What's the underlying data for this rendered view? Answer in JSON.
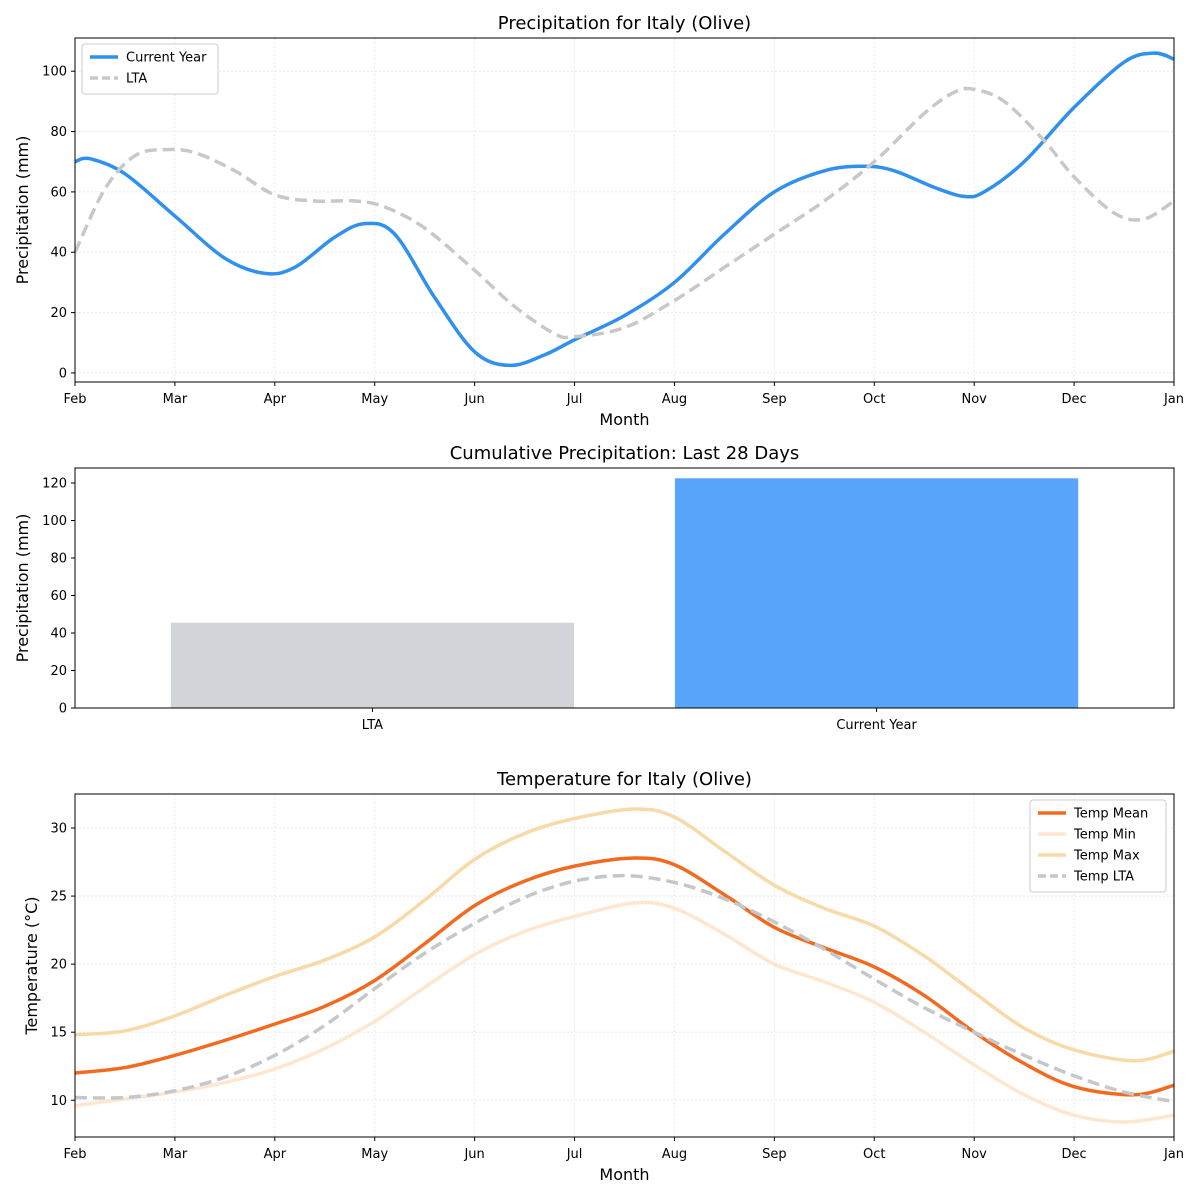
{
  "chart_data": [
    {
      "type": "line",
      "title": "Precipitation for Italy (Olive)",
      "xlabel": "Month",
      "ylabel": "Precipitation (mm)",
      "x_ticks": [
        "Feb",
        "Mar",
        "Apr",
        "May",
        "Jun",
        "Jul",
        "Aug",
        "Sep",
        "Oct",
        "Nov",
        "Dec",
        "Jan"
      ],
      "xlim": [
        0,
        11
      ],
      "ylim": [
        -3,
        111
      ],
      "y_ticks": [
        0,
        20,
        40,
        60,
        80,
        100
      ],
      "grid": true,
      "legend": "top-left",
      "series": [
        {
          "name": "Current Year",
          "color": "#3090ee",
          "style": "solid",
          "x": [
            0,
            0.15,
            0.5,
            1.0,
            1.5,
            1.9,
            2.2,
            2.6,
            2.9,
            3.2,
            3.6,
            4.0,
            4.35,
            4.7,
            5.0,
            5.5,
            6.0,
            6.5,
            7.0,
            7.5,
            7.9,
            8.2,
            8.6,
            8.9,
            9.1,
            9.5,
            10.0,
            10.5,
            10.8,
            11.0
          ],
          "y": [
            70,
            71,
            66,
            52,
            38,
            33,
            35,
            45,
            49.5,
            46,
            25,
            7,
            2.5,
            6,
            11,
            19,
            30,
            46,
            60,
            67,
            68.5,
            67,
            61.5,
            58.5,
            60,
            70,
            88,
            103,
            106,
            104
          ]
        },
        {
          "name": "LTA",
          "color": "#c8c8c8",
          "style": "dashed",
          "x": [
            0,
            0.3,
            0.6,
            0.9,
            1.2,
            1.6,
            2.0,
            2.4,
            2.8,
            3.1,
            3.5,
            4.0,
            4.4,
            4.8,
            5.0,
            5.5,
            6.0,
            6.5,
            7.0,
            7.5,
            8.0,
            8.5,
            8.8,
            9.0,
            9.3,
            9.7,
            10.0,
            10.4,
            10.7,
            11.0
          ],
          "y": [
            40,
            61,
            72,
            74,
            73,
            67,
            59,
            57,
            57,
            55,
            48,
            34,
            22,
            13,
            12,
            15,
            24,
            35,
            46,
            57,
            70,
            86,
            93,
            94,
            90,
            77,
            65,
            53,
            51,
            57
          ]
        }
      ]
    },
    {
      "type": "bar",
      "title": "Cumulative Precipitation: Last 28 Days",
      "xlabel": "",
      "ylabel": "Precipitation (mm)",
      "categories": [
        "LTA",
        "Current Year"
      ],
      "values": [
        45.5,
        122.5
      ],
      "colors": [
        "#d1d5d9",
        "#58a5fb"
      ],
      "ylim": [
        0,
        128
      ],
      "y_ticks": [
        0,
        20,
        40,
        60,
        80,
        100,
        120
      ]
    },
    {
      "type": "line",
      "title": "Temperature for Italy (Olive)",
      "xlabel": "Month",
      "ylabel": "Temperature (°C)",
      "x_ticks": [
        "Feb",
        "Mar",
        "Apr",
        "May",
        "Jun",
        "Jul",
        "Aug",
        "Sep",
        "Oct",
        "Nov",
        "Dec",
        "Jan"
      ],
      "xlim": [
        0,
        11
      ],
      "ylim": [
        7.3,
        32.5
      ],
      "y_ticks": [
        10,
        15,
        20,
        25,
        30
      ],
      "grid": true,
      "legend": "top-right",
      "series": [
        {
          "name": "Temp Mean",
          "color": "#f26a1f",
          "style": "solid",
          "x": [
            0,
            0.5,
            1.0,
            1.5,
            2.0,
            2.5,
            3.0,
            3.5,
            4.0,
            4.5,
            5.0,
            5.6,
            6.0,
            6.5,
            7.0,
            7.5,
            8.0,
            8.5,
            9.0,
            9.5,
            10.0,
            10.6,
            11.0
          ],
          "y": [
            12,
            12.4,
            13.3,
            14.4,
            15.6,
            16.9,
            18.8,
            21.5,
            24.3,
            26.1,
            27.2,
            27.8,
            27.3,
            25.1,
            22.7,
            21.2,
            19.8,
            17.7,
            15.0,
            12.7,
            11.0,
            10.4,
            11.1
          ]
        },
        {
          "name": "Temp Min",
          "color": "#ffe6cf",
          "style": "solid",
          "x": [
            0,
            0.5,
            1.0,
            1.5,
            2.0,
            2.5,
            3.0,
            3.5,
            4.0,
            4.5,
            5.0,
            5.6,
            6.0,
            6.5,
            7.0,
            7.5,
            8.0,
            8.5,
            9.0,
            9.5,
            10.0,
            10.5,
            11.0
          ],
          "y": [
            9.6,
            10.1,
            10.6,
            11.3,
            12.3,
            13.8,
            15.8,
            18.3,
            20.7,
            22.4,
            23.5,
            24.5,
            24.1,
            22.2,
            20.0,
            18.7,
            17.2,
            15.0,
            12.6,
            10.4,
            8.9,
            8.4,
            8.9
          ]
        },
        {
          "name": "Temp Max",
          "color": "#f8d9a8",
          "style": "solid",
          "x": [
            0,
            0.5,
            1.0,
            1.5,
            2.0,
            2.5,
            3.0,
            3.5,
            4.0,
            4.5,
            5.0,
            5.6,
            6.0,
            6.5,
            7.0,
            7.5,
            8.0,
            8.5,
            9.0,
            9.5,
            10.0,
            10.6,
            11.0
          ],
          "y": [
            14.8,
            15.1,
            16.2,
            17.7,
            19.1,
            20.3,
            22.0,
            24.7,
            27.7,
            29.6,
            30.7,
            31.4,
            30.8,
            28.3,
            25.8,
            24.1,
            22.8,
            20.6,
            17.9,
            15.3,
            13.7,
            12.9,
            13.6
          ]
        },
        {
          "name": "Temp LTA",
          "color": "#c4c8cc",
          "style": "dashed",
          "x": [
            0,
            0.5,
            1.0,
            1.5,
            2.0,
            2.5,
            3.0,
            3.5,
            4.0,
            4.5,
            5.0,
            5.5,
            6.0,
            6.5,
            7.0,
            7.5,
            8.0,
            8.5,
            9.0,
            9.5,
            10.0,
            10.5,
            11.0
          ],
          "y": [
            10.2,
            10.2,
            10.7,
            11.7,
            13.3,
            15.5,
            18.2,
            20.8,
            23.0,
            24.9,
            26.1,
            26.5,
            26.0,
            24.8,
            23.1,
            21.1,
            18.9,
            16.8,
            15.0,
            13.3,
            11.8,
            10.6,
            9.9
          ]
        }
      ]
    }
  ]
}
